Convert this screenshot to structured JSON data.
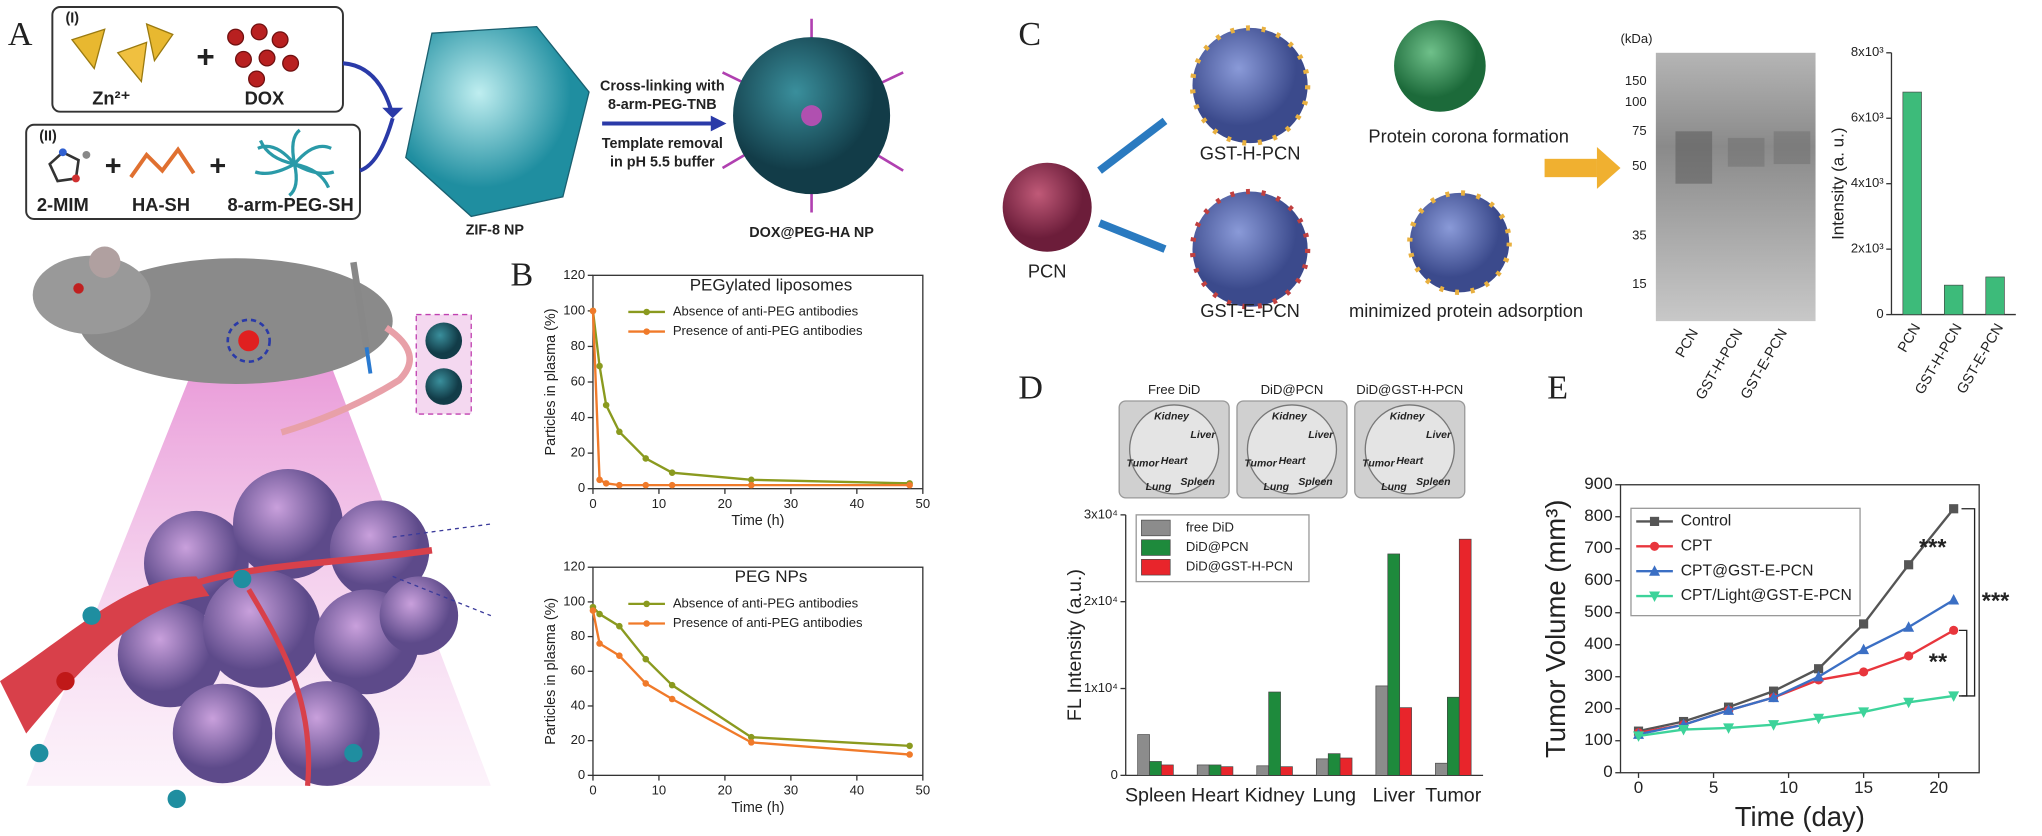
{
  "panel_labels": [
    "A",
    "B",
    "C",
    "D",
    "E"
  ],
  "panel_a": {
    "box_1": {
      "label": "(I)",
      "items": [
        "Zn²⁺",
        "DOX"
      ]
    },
    "box_2": {
      "label": "(II)",
      "items": [
        "2-MIM",
        "HA-SH",
        "8-arm-PEG-SH"
      ]
    },
    "zif8": "ZIF-8 NP",
    "arrow_above": [
      "Cross-linking with",
      "8-arm-PEG-TNB"
    ],
    "arrow_below": [
      "Template removal",
      "in pH 5.5 buffer"
    ],
    "product": "DOX@PEG-HA NP"
  },
  "panel_c": {
    "pcn": "PCN",
    "gst_h": "GST-H-PCN",
    "gst_e": "GST-E-PCN",
    "corona": "Protein corona formation",
    "minimized": "minimized protein adsorption",
    "gel": {
      "unit": "(kDa)",
      "markers": [
        "150",
        "100",
        "75",
        "50",
        "35",
        "15"
      ],
      "lanes": [
        "PCN",
        "GST-H-PCN",
        "GST-E-PCN"
      ]
    }
  },
  "panel_d_images": [
    {
      "title": "Free DiD",
      "organs": [
        "Kidney",
        "Liver",
        "Tumor",
        "Heart",
        "Lung",
        "Spleen"
      ]
    },
    {
      "title": "DiD@PCN",
      "organs": [
        "Kidney",
        "Liver",
        "Tumor",
        "Heart",
        "Lung",
        "Spleen"
      ]
    },
    {
      "title": "DiD@GST-H-PCN",
      "organs": [
        "Kidney",
        "Liver",
        "Tumor",
        "Heart",
        "Lung",
        "Spleen"
      ]
    }
  ],
  "chart_data": [
    {
      "type": "line",
      "title": "PEGylated liposomes",
      "xlabel": "Time (h)",
      "ylabel": "Particles in plasma (%)",
      "x": [
        0,
        1,
        2,
        4,
        8,
        12,
        24,
        48
      ],
      "series": [
        {
          "name": "Absence of anti-PEG antibodies",
          "color": "#8a9a1f",
          "marker": "circle",
          "values": [
            100,
            69,
            47,
            32,
            17,
            9,
            5,
            3
          ]
        },
        {
          "name": "Presence of anti-PEG antibodies",
          "color": "#f07a2a",
          "marker": "circle",
          "values": [
            100,
            5,
            3,
            2,
            2,
            2,
            2,
            2
          ]
        }
      ],
      "xlim": [
        0,
        50
      ],
      "xticks": [
        0,
        10,
        20,
        30,
        40,
        50
      ],
      "ylim": [
        0,
        120
      ],
      "yticks": [
        0,
        20,
        40,
        60,
        80,
        100,
        120
      ],
      "frame": true,
      "legend": "upper right"
    },
    {
      "type": "line",
      "title": "PEG NPs",
      "xlabel": "Time (h)",
      "ylabel": "Particles in plasma (%)",
      "x": [
        0,
        1,
        4,
        8,
        12,
        24,
        48
      ],
      "series": [
        {
          "name": "Absence of anti-PEG antibodies",
          "color": "#8a9a1f",
          "marker": "circle",
          "values": [
            97,
            93,
            86,
            67,
            52,
            22,
            17
          ]
        },
        {
          "name": "Presence of anti-PEG antibodies",
          "color": "#f07a2a",
          "marker": "circle",
          "values": [
            95,
            76,
            69,
            53,
            44,
            19,
            12
          ]
        }
      ],
      "xlim": [
        0,
        50
      ],
      "xticks": [
        0,
        10,
        20,
        30,
        40,
        50
      ],
      "ylim": [
        0,
        120
      ],
      "yticks": [
        0,
        20,
        40,
        60,
        80,
        100,
        120
      ],
      "frame": true,
      "legend": "upper right"
    },
    {
      "type": "bar",
      "ylabel": "Intensity (a. u.)",
      "categories": [
        "PCN",
        "GST-H-PCN",
        "GST-E-PCN"
      ],
      "series": [
        {
          "color": "#3dbb7a",
          "values": [
            6800,
            900,
            1150
          ]
        }
      ],
      "ylim": [
        0,
        8000
      ],
      "yticks": [
        0,
        {
          "value": 2000,
          "label": "2x10³"
        },
        {
          "value": 4000,
          "label": "4x10³"
        },
        {
          "value": 6000,
          "label": "6x10³"
        },
        {
          "value": 8000,
          "label": "8x10³"
        }
      ],
      "frame": false
    },
    {
      "type": "bar",
      "ylabel": "FL Intensity (a.u.)",
      "categories": [
        "Spleen",
        "Heart",
        "Kidney",
        "Lung",
        "Liver",
        "Tumor"
      ],
      "series": [
        {
          "name": "free DiD",
          "color": "#8c8c8c",
          "values": [
            4700,
            1200,
            1100,
            1900,
            10300,
            1400
          ]
        },
        {
          "name": "DiD@PCN",
          "color": "#1e8a3c",
          "values": [
            1600,
            1200,
            9600,
            2500,
            25500,
            9000
          ]
        },
        {
          "name": "DiD@GST-H-PCN",
          "color": "#e8252b",
          "values": [
            1200,
            1000,
            1000,
            2000,
            7800,
            27200
          ]
        }
      ],
      "ylim": [
        0,
        30000
      ],
      "yticks": [
        0,
        {
          "value": 10000,
          "label": "1x10⁴"
        },
        {
          "value": 20000,
          "label": "2x10⁴"
        },
        {
          "value": 30000,
          "label": "3x10⁴"
        }
      ],
      "frame": false,
      "legend": "upper left"
    },
    {
      "type": "line",
      "xlabel": "Time (day)",
      "ylabel": "Tumor Volume (mm³)",
      "x": [
        0,
        3,
        6,
        9,
        12,
        15,
        18,
        21
      ],
      "series": [
        {
          "name": "Control",
          "color": "#555555",
          "marker": "square",
          "values": [
            130,
            160,
            205,
            255,
            325,
            465,
            650,
            825
          ]
        },
        {
          "name": "CPT",
          "color": "#e8363d",
          "marker": "circle",
          "values": [
            125,
            150,
            195,
            235,
            290,
            315,
            365,
            445
          ]
        },
        {
          "name": "CPT@GST-E-PCN",
          "color": "#3b6fc4",
          "marker": "triangle",
          "values": [
            120,
            150,
            195,
            235,
            300,
            385,
            455,
            540
          ]
        },
        {
          "name": "CPT/Light@GST-E-PCN",
          "color": "#3dd39a",
          "marker": "triangle-down",
          "values": [
            115,
            135,
            140,
            150,
            170,
            190,
            220,
            240
          ]
        }
      ],
      "xlim": [
        -1.2,
        22.7
      ],
      "xticks": [
        0,
        5,
        10,
        15,
        20
      ],
      "ylim": [
        0,
        900
      ],
      "yticks": [
        0,
        100,
        200,
        300,
        400,
        500,
        600,
        700,
        800,
        900
      ],
      "frame": true,
      "legend": "upper left",
      "annotations": [
        "***",
        "***",
        "**"
      ]
    }
  ]
}
